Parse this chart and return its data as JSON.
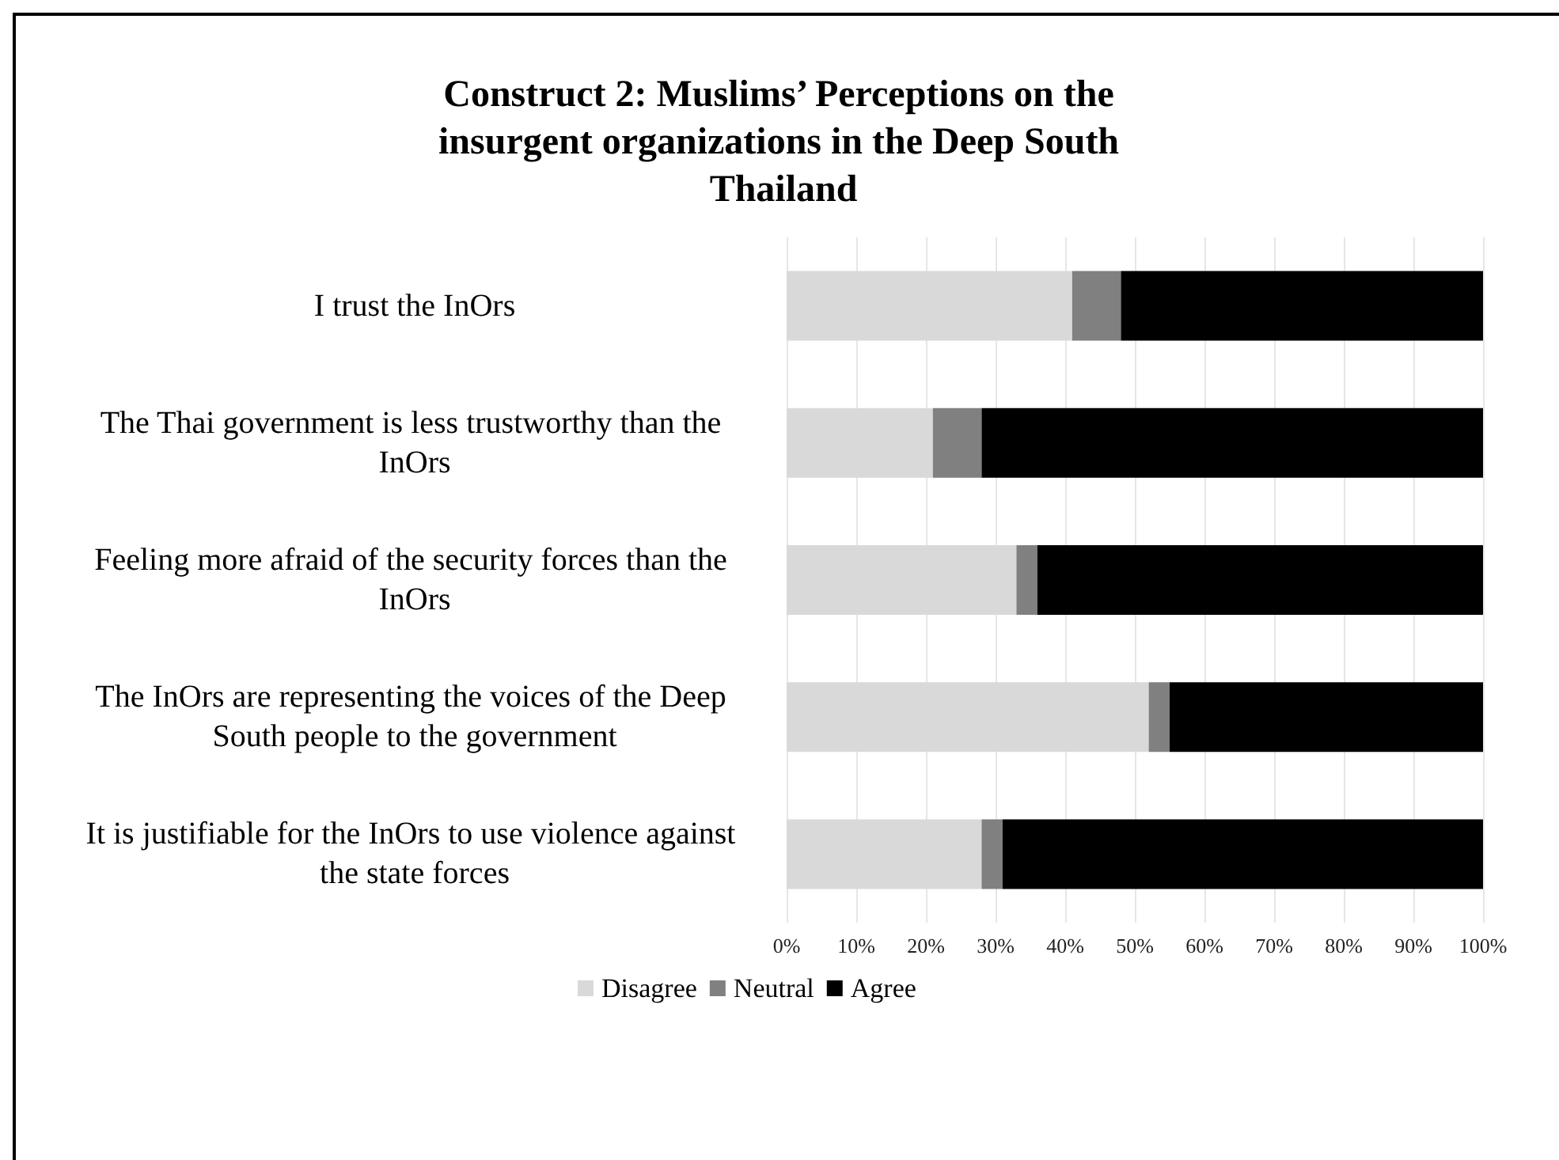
{
  "chart_data": {
    "type": "bar",
    "orientation": "horizontal",
    "stacked": true,
    "title": "Construct 2: Muslims’ Perceptions on the insurgent organizations in the Deep South Thailand",
    "categories": [
      "I trust the InOrs",
      "The Thai government is less trustworthy than the InOrs",
      "Feeling more afraid of the security forces than the InOrs",
      "The InOrs are representing the voices of the Deep South people to the government",
      "It is justifiable for the InOrs to use violence against the state forces"
    ],
    "series": [
      {
        "name": "Disagree",
        "color": "#d9d9d9",
        "values": [
          41,
          21,
          33,
          52,
          28
        ]
      },
      {
        "name": "Neutral",
        "color": "#808080",
        "values": [
          7,
          7,
          3,
          3,
          3
        ]
      },
      {
        "name": "Agree",
        "color": "#000000",
        "values": [
          52,
          72,
          64,
          45,
          69
        ]
      }
    ],
    "xlim": [
      0,
      100
    ],
    "xticks": [
      {
        "value": 0,
        "label": "0%"
      },
      {
        "value": 10,
        "label": "10%"
      },
      {
        "value": 20,
        "label": "20%"
      },
      {
        "value": 30,
        "label": "30%"
      },
      {
        "value": 40,
        "label": "40%"
      },
      {
        "value": 50,
        "label": "50%"
      },
      {
        "value": 60,
        "label": "60%"
      },
      {
        "value": 70,
        "label": "70%"
      },
      {
        "value": 80,
        "label": "80%"
      },
      {
        "value": 90,
        "label": "90%"
      },
      {
        "value": 100,
        "label": "100%"
      }
    ],
    "grid": "x",
    "legend": "bottom"
  }
}
